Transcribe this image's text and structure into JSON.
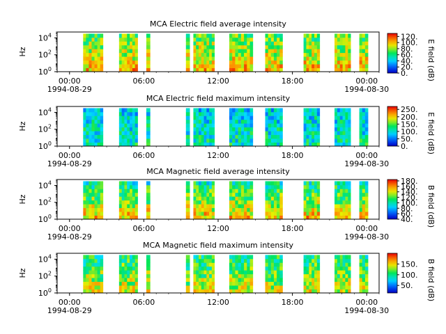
{
  "chart_data": [
    {
      "type": "heatmap",
      "title": "MCA  Electric field average intensity",
      "ylabel": "Hz",
      "y_scale": "log",
      "ylim": [
        1,
        50000
      ],
      "y_ticks": [
        {
          "value": 1,
          "base": "10",
          "exp": "0"
        },
        {
          "value": 100,
          "base": "10",
          "exp": "2"
        },
        {
          "value": 10000,
          "base": "10",
          "exp": "4"
        }
      ],
      "x_ticks": [
        {
          "label": "00:00",
          "sub": "1994-08-29"
        },
        {
          "label": "06:00",
          "sub": ""
        },
        {
          "label": "12:00",
          "sub": ""
        },
        {
          "label": "18:00",
          "sub": ""
        },
        {
          "label": "00:00",
          "sub": "1994-08-30"
        }
      ],
      "xlim_hours": [
        -1,
        25
      ],
      "colorbar": {
        "label": "E field (dB)",
        "range": [
          0,
          130
        ],
        "ticks": [
          "0.",
          "20.",
          "40.",
          "60.",
          "80.",
          "100.",
          "120."
        ],
        "tick_values": [
          0,
          20,
          40,
          60,
          80,
          100,
          120
        ]
      },
      "segments_hours": [
        [
          1.1,
          2.7
        ],
        [
          4.0,
          5.5
        ],
        [
          6.2,
          6.5
        ],
        [
          9.4,
          9.7
        ],
        [
          10.0,
          11.7
        ],
        [
          12.9,
          14.8
        ],
        [
          15.8,
          17.2
        ],
        [
          18.9,
          20.2
        ],
        [
          21.4,
          22.7
        ],
        [
          23.4,
          24.1
        ]
      ],
      "intensity_low_freq": 100,
      "intensity_high_freq": 70
    },
    {
      "type": "heatmap",
      "title": "MCA  Electric field maximum intensity",
      "ylabel": "Hz",
      "y_scale": "log",
      "ylim": [
        1,
        50000
      ],
      "y_ticks": [
        {
          "value": 1,
          "base": "10",
          "exp": "0"
        },
        {
          "value": 100,
          "base": "10",
          "exp": "2"
        },
        {
          "value": 10000,
          "base": "10",
          "exp": "4"
        }
      ],
      "x_ticks": [
        {
          "label": "00:00",
          "sub": "1994-08-29"
        },
        {
          "label": "06:00",
          "sub": ""
        },
        {
          "label": "12:00",
          "sub": ""
        },
        {
          "label": "18:00",
          "sub": ""
        },
        {
          "label": "00:00",
          "sub": "1994-08-30"
        }
      ],
      "xlim_hours": [
        -1,
        25
      ],
      "colorbar": {
        "label": "E field (dB)",
        "range": [
          0,
          270
        ],
        "ticks": [
          "0.",
          "50.",
          "100.",
          "150.",
          "200.",
          "250."
        ],
        "tick_values": [
          0,
          50,
          100,
          150,
          200,
          250
        ]
      },
      "segments_hours": [
        [
          1.1,
          2.7
        ],
        [
          4.0,
          5.5
        ],
        [
          6.2,
          6.5
        ],
        [
          9.4,
          9.7
        ],
        [
          10.0,
          11.7
        ],
        [
          12.9,
          14.8
        ],
        [
          15.8,
          17.2
        ],
        [
          18.9,
          20.2
        ],
        [
          21.4,
          22.7
        ],
        [
          23.4,
          24.1
        ]
      ],
      "intensity_low_freq": 110,
      "intensity_high_freq": 90
    },
    {
      "type": "heatmap",
      "title": "MCA  Magnetic field average intensity",
      "ylabel": "Hz",
      "y_scale": "log",
      "ylim": [
        1,
        50000
      ],
      "y_ticks": [
        {
          "value": 1,
          "base": "10",
          "exp": "0"
        },
        {
          "value": 100,
          "base": "10",
          "exp": "2"
        },
        {
          "value": 10000,
          "base": "10",
          "exp": "4"
        }
      ],
      "x_ticks": [
        {
          "label": "00:00",
          "sub": "1994-08-29"
        },
        {
          "label": "06:00",
          "sub": ""
        },
        {
          "label": "12:00",
          "sub": ""
        },
        {
          "label": "18:00",
          "sub": ""
        },
        {
          "label": "00:00",
          "sub": "1994-08-30"
        }
      ],
      "xlim_hours": [
        -1,
        25
      ],
      "colorbar": {
        "label": "B field (dB)",
        "range": [
          40,
          185
        ],
        "ticks": [
          "40.",
          "60.",
          "80.",
          "100.",
          "120.",
          "140.",
          "160.",
          "180."
        ],
        "tick_values": [
          40,
          60,
          80,
          100,
          120,
          140,
          160,
          180
        ]
      },
      "segments_hours": [
        [
          1.1,
          2.7
        ],
        [
          4.0,
          5.5
        ],
        [
          6.2,
          6.5
        ],
        [
          9.4,
          9.7
        ],
        [
          10.0,
          11.7
        ],
        [
          12.9,
          14.8
        ],
        [
          15.8,
          17.2
        ],
        [
          18.9,
          20.2
        ],
        [
          21.4,
          22.7
        ],
        [
          23.4,
          24.1
        ]
      ],
      "intensity_low_freq": 150,
      "intensity_high_freq": 100
    },
    {
      "type": "heatmap",
      "title": "MCA  Magnetic field maximum intensity",
      "ylabel": "Hz",
      "y_scale": "log",
      "ylim": [
        1,
        50000
      ],
      "y_ticks": [
        {
          "value": 1,
          "base": "10",
          "exp": "0"
        },
        {
          "value": 100,
          "base": "10",
          "exp": "2"
        },
        {
          "value": 10000,
          "base": "10",
          "exp": "4"
        }
      ],
      "x_ticks": [
        {
          "label": "00:00",
          "sub": "1994-08-29"
        },
        {
          "label": "06:00",
          "sub": ""
        },
        {
          "label": "12:00",
          "sub": ""
        },
        {
          "label": "18:00",
          "sub": ""
        },
        {
          "label": "00:00",
          "sub": "1994-08-30"
        }
      ],
      "xlim_hours": [
        -1,
        25
      ],
      "colorbar": {
        "label": "B field (dB)",
        "range": [
          15,
          200
        ],
        "ticks": [
          "50.",
          "100.",
          "150."
        ],
        "tick_values": [
          50,
          100,
          150
        ]
      },
      "segments_hours": [
        [
          1.1,
          2.7
        ],
        [
          4.0,
          5.5
        ],
        [
          6.2,
          6.5
        ],
        [
          9.4,
          9.7
        ],
        [
          10.0,
          11.7
        ],
        [
          12.9,
          14.8
        ],
        [
          15.8,
          17.2
        ],
        [
          18.9,
          20.2
        ],
        [
          21.4,
          22.7
        ],
        [
          23.4,
          24.1
        ]
      ],
      "intensity_low_freq": 140,
      "intensity_high_freq": 100
    }
  ]
}
